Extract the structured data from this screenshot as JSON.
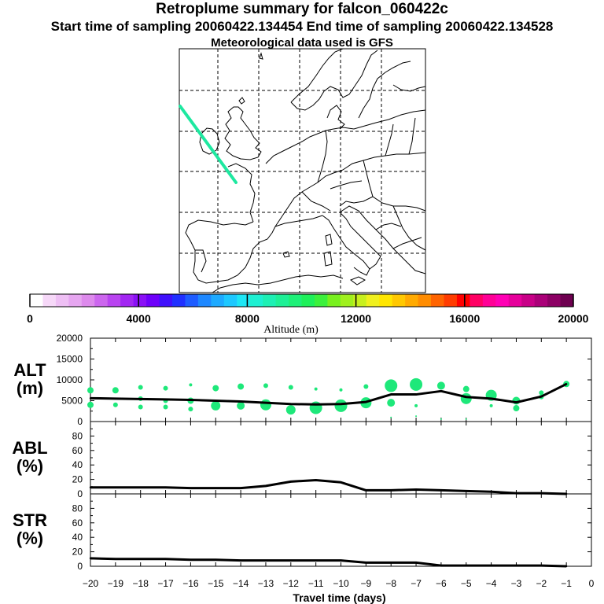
{
  "header": {
    "title": "Retroplume summary for falcon_060422c",
    "subtitle": "Start time of sampling 20060422.134454     End time of sampling 20060422.134528",
    "met_line": "Meteorological data used is GFS"
  },
  "colorbar": {
    "label": "Altitude (m)",
    "ticks": [
      "0",
      "4000",
      "8000",
      "12000",
      "16000",
      "20000"
    ],
    "colors": [
      "#ffffff",
      "#f6d8f8",
      "#eebff4",
      "#e6a6f0",
      "#dd8aec",
      "#cc66ee",
      "#b944f0",
      "#a226f2",
      "#8a10f6",
      "#6e00fa",
      "#4010fc",
      "#2030ff",
      "#1e5cff",
      "#1e88ff",
      "#1eaaff",
      "#1ec8ff",
      "#1ee6f5",
      "#1ef0d2",
      "#1ef0b4",
      "#1ef096",
      "#1ef078",
      "#1ef05a",
      "#3cf03c",
      "#78f01e",
      "#a0f01e",
      "#c8f01e",
      "#f0f01e",
      "#ffe600",
      "#ffc800",
      "#ffaa00",
      "#ff8c00",
      "#ff6400",
      "#ff3c00",
      "#ff0000",
      "#ff0064",
      "#ff0096",
      "#ff00b4",
      "#e6009b",
      "#c80087",
      "#aa0078",
      "#8c0064",
      "#6e0050"
    ]
  },
  "map": {
    "trajectory_color": "#1ee8a0"
  },
  "chart_data": [
    {
      "type": "line",
      "panel": "ALT",
      "ylabel": "ALT (m)",
      "ylabel_line1": "ALT",
      "ylabel_line2": "(m)",
      "ylim": [
        0,
        20000
      ],
      "yticks": [
        "0",
        "5000",
        "10000",
        "15000",
        "20000"
      ],
      "x": [
        -20,
        -19,
        -18,
        -17,
        -16,
        -15,
        -14,
        -13,
        -12,
        -11,
        -10,
        -9,
        -8,
        -7,
        -6,
        -5,
        -4,
        -3,
        -2,
        -1
      ],
      "values": [
        5600,
        5500,
        5400,
        5300,
        5200,
        5000,
        4800,
        4500,
        4200,
        4100,
        4200,
        4700,
        6500,
        6500,
        7300,
        5900,
        5500,
        4600,
        6000,
        9000
      ],
      "cluster_color": "#1ee87a",
      "clusters": [
        {
          "x": -20,
          "y": 7500,
          "r": 4
        },
        {
          "x": -20,
          "y": 4000,
          "r": 4
        },
        {
          "x": -19,
          "y": 7500,
          "r": 4
        },
        {
          "x": -19,
          "y": 4000,
          "r": 3
        },
        {
          "x": -18,
          "y": 8200,
          "r": 3
        },
        {
          "x": -18,
          "y": 5500,
          "r": 3
        },
        {
          "x": -18,
          "y": 3500,
          "r": 3
        },
        {
          "x": -17,
          "y": 8000,
          "r": 3
        },
        {
          "x": -17,
          "y": 5000,
          "r": 3
        },
        {
          "x": -17,
          "y": 3500,
          "r": 3
        },
        {
          "x": -16,
          "y": 8800,
          "r": 2
        },
        {
          "x": -16,
          "y": 5000,
          "r": 4
        },
        {
          "x": -16,
          "y": 3000,
          "r": 3
        },
        {
          "x": -15,
          "y": 8000,
          "r": 4
        },
        {
          "x": -15,
          "y": 3800,
          "r": 6
        },
        {
          "x": -14,
          "y": 8400,
          "r": 4
        },
        {
          "x": -14,
          "y": 3800,
          "r": 5
        },
        {
          "x": -13,
          "y": 8600,
          "r": 3
        },
        {
          "x": -13,
          "y": 4000,
          "r": 7
        },
        {
          "x": -12,
          "y": 8200,
          "r": 3
        },
        {
          "x": -12,
          "y": 2800,
          "r": 6
        },
        {
          "x": -11,
          "y": 7800,
          "r": 2
        },
        {
          "x": -11,
          "y": 3300,
          "r": 8
        },
        {
          "x": -10,
          "y": 7600,
          "r": 2
        },
        {
          "x": -10,
          "y": 3800,
          "r": 8
        },
        {
          "x": -9,
          "y": 8400,
          "r": 3
        },
        {
          "x": -9,
          "y": 4500,
          "r": 7
        },
        {
          "x": -8,
          "y": 8600,
          "r": 8
        },
        {
          "x": -8,
          "y": 4500,
          "r": 5
        },
        {
          "x": -8,
          "y": 1000,
          "r": 1
        },
        {
          "x": -7,
          "y": 8900,
          "r": 8
        },
        {
          "x": -7,
          "y": 3800,
          "r": 2
        },
        {
          "x": -7,
          "y": 1300,
          "r": 1
        },
        {
          "x": -6,
          "y": 8600,
          "r": 5
        },
        {
          "x": -6,
          "y": 600,
          "r": 1
        },
        {
          "x": -5,
          "y": 7800,
          "r": 4
        },
        {
          "x": -5,
          "y": 5500,
          "r": 7
        },
        {
          "x": -5,
          "y": 600,
          "r": 1
        },
        {
          "x": -4,
          "y": 6300,
          "r": 7
        },
        {
          "x": -4,
          "y": 3800,
          "r": 2
        },
        {
          "x": -3,
          "y": 5000,
          "r": 5
        },
        {
          "x": -3,
          "y": 3200,
          "r": 4
        },
        {
          "x": -2,
          "y": 6900,
          "r": 3
        },
        {
          "x": -2,
          "y": 5900,
          "r": 3
        },
        {
          "x": -1,
          "y": 9000,
          "r": 4
        }
      ]
    },
    {
      "type": "line",
      "panel": "ABL",
      "ylabel": "ABL (%)",
      "ylabel_line1": "ABL",
      "ylabel_line2": "(%)",
      "ylim": [
        0,
        100
      ],
      "yticks": [
        "0",
        "20",
        "40",
        "60",
        "80"
      ],
      "x": [
        -20,
        -19,
        -18,
        -17,
        -16,
        -15,
        -14,
        -13,
        -12,
        -11,
        -10,
        -9,
        -8,
        -7,
        -6,
        -5,
        -4,
        -3,
        -2,
        -1
      ],
      "values": [
        9,
        9,
        9,
        9,
        8,
        8,
        8,
        11,
        17,
        19,
        16,
        5,
        5,
        6,
        5,
        4,
        3,
        1,
        1,
        0
      ]
    },
    {
      "type": "line",
      "panel": "STR",
      "ylabel": "STR (%)",
      "ylabel_line1": "STR",
      "ylabel_line2": "(%)",
      "ylim": [
        0,
        100
      ],
      "yticks": [
        "0",
        "20",
        "40",
        "60",
        "80"
      ],
      "x": [
        -20,
        -19,
        -18,
        -17,
        -16,
        -15,
        -14,
        -13,
        -12,
        -11,
        -10,
        -9,
        -8,
        -7,
        -6,
        -5,
        -4,
        -3,
        -2,
        -1
      ],
      "values": [
        11,
        10,
        10,
        10,
        9,
        9,
        8,
        8,
        8,
        8,
        8,
        5,
        5,
        5,
        1,
        1,
        1,
        1,
        1,
        0
      ]
    }
  ],
  "xaxis": {
    "label": "Travel time (days)",
    "xlim": [
      -20,
      0
    ],
    "ticks": [
      "−20",
      "−19",
      "−18",
      "−17",
      "−16",
      "−15",
      "−14",
      "−13",
      "−12",
      "−11",
      "−10",
      "−9",
      "−8",
      "−7",
      "−6",
      "−5",
      "−4",
      "−3",
      "−2",
      "−1",
      "0"
    ]
  }
}
